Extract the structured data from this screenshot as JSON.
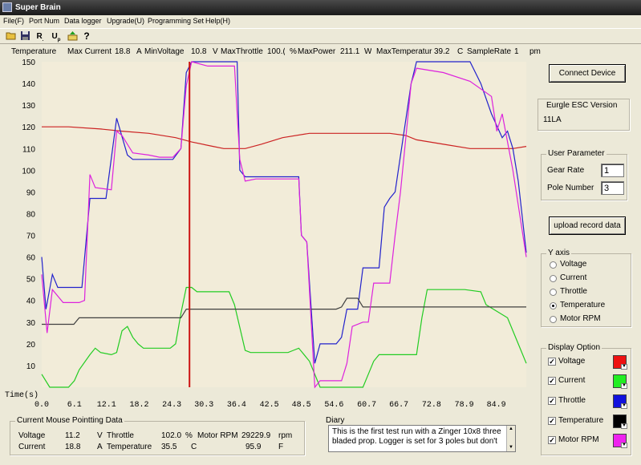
{
  "window": {
    "title": "Super Brain"
  },
  "menu": [
    "File(F)",
    "Port Num",
    "Data logger",
    "Upgrade(U)",
    "Programming Set",
    "Help(H)"
  ],
  "toolbar_icons": [
    "open-folder-icon",
    "save-disk-icon",
    "r-tool-icon",
    "u-tool-icon",
    "upload-icon",
    "help-icon"
  ],
  "stats": {
    "left_axis_label": "Temperature",
    "max_current_label": "Max Current",
    "max_current": "18.8",
    "current_unit": "A",
    "min_voltage_label": "MinVoltage",
    "min_voltage": "10.8",
    "voltage_unit": "V",
    "max_throttle_label": "MaxThrottle",
    "max_throttle": "100.(",
    "throttle_unit": "%",
    "max_power_label": "MaxPower",
    "max_power": "211.1",
    "power_unit": "W",
    "max_temp_label": "MaxTemperatur",
    "max_temp": "39.2",
    "temp_unit": "C",
    "sample_rate_label": "SampleRate",
    "sample_rate": "1",
    "sample_unit": "pm"
  },
  "chart_data": {
    "type": "line",
    "xlabel": "Time(s)",
    "ylabel": "Temperature",
    "ylim": [
      0,
      150
    ],
    "xlim": [
      0,
      90.5
    ],
    "yticks": [
      10,
      20,
      30,
      40,
      50,
      60,
      70,
      80,
      90,
      100,
      110,
      120,
      130,
      140,
      150
    ],
    "xticks": [
      "0.0",
      "6.1",
      "12.1",
      "18.2",
      "24.3",
      "30.3",
      "36.4",
      "42.5",
      "48.5",
      "54.6",
      "60.7",
      "66.7",
      "72.8",
      "78.9",
      "84.9"
    ],
    "xtick_values": [
      0.0,
      6.1,
      12.1,
      18.2,
      24.3,
      30.3,
      36.4,
      42.5,
      48.5,
      54.6,
      60.7,
      66.7,
      72.8,
      78.9,
      84.9
    ],
    "cursor_x": 27.6,
    "grid": false,
    "series": [
      {
        "name": "Voltage",
        "color": "#cc2222",
        "points": [
          [
            0,
            120
          ],
          [
            5,
            120
          ],
          [
            11,
            119
          ],
          [
            15,
            118
          ],
          [
            20,
            117
          ],
          [
            25,
            115
          ],
          [
            28,
            113
          ],
          [
            32,
            111
          ],
          [
            34,
            110
          ],
          [
            38,
            110
          ],
          [
            41,
            112
          ],
          [
            45,
            115
          ],
          [
            50,
            117
          ],
          [
            54,
            117
          ],
          [
            58,
            117
          ],
          [
            63,
            117
          ],
          [
            65,
            117
          ],
          [
            68,
            116
          ],
          [
            70,
            114
          ],
          [
            75,
            112
          ],
          [
            80,
            110
          ],
          [
            85,
            110
          ],
          [
            88,
            110
          ],
          [
            90.5,
            111
          ]
        ]
      },
      {
        "name": "Current",
        "color": "#22cc22",
        "points": [
          [
            0,
            6
          ],
          [
            1.5,
            0
          ],
          [
            5,
            0
          ],
          [
            6.1,
            3
          ],
          [
            7,
            8
          ],
          [
            9,
            15
          ],
          [
            10,
            18
          ],
          [
            11,
            16
          ],
          [
            13,
            15
          ],
          [
            14,
            16
          ],
          [
            15,
            26
          ],
          [
            16,
            28
          ],
          [
            17,
            23
          ],
          [
            18,
            20
          ],
          [
            19,
            18
          ],
          [
            24,
            18
          ],
          [
            25,
            20
          ],
          [
            26,
            34
          ],
          [
            27,
            46
          ],
          [
            28,
            46
          ],
          [
            29,
            44
          ],
          [
            35,
            44
          ],
          [
            36,
            38
          ],
          [
            38,
            17
          ],
          [
            39,
            16
          ],
          [
            46,
            16
          ],
          [
            47,
            17
          ],
          [
            48,
            18
          ],
          [
            50,
            12
          ],
          [
            52,
            0
          ],
          [
            60,
            0
          ],
          [
            61,
            6
          ],
          [
            62,
            12
          ],
          [
            63,
            15
          ],
          [
            70,
            15
          ],
          [
            71,
            32
          ],
          [
            72,
            45
          ],
          [
            73,
            45
          ],
          [
            79,
            45
          ],
          [
            82,
            44
          ],
          [
            83,
            38
          ],
          [
            87,
            32
          ],
          [
            89,
            20
          ],
          [
            90.5,
            11
          ]
        ]
      },
      {
        "name": "Throttle",
        "color": "#2222cc",
        "points": [
          [
            0,
            60
          ],
          [
            0.8,
            36
          ],
          [
            2,
            52
          ],
          [
            3,
            46
          ],
          [
            7.5,
            46
          ],
          [
            9,
            87
          ],
          [
            10,
            87
          ],
          [
            12,
            87
          ],
          [
            14,
            124
          ],
          [
            16,
            107
          ],
          [
            17,
            105
          ],
          [
            24.5,
            105
          ],
          [
            26,
            110
          ],
          [
            27,
            145
          ],
          [
            28,
            150
          ],
          [
            36.5,
            150
          ],
          [
            37,
            100
          ],
          [
            38,
            97
          ],
          [
            48,
            97
          ],
          [
            48.5,
            70
          ],
          [
            49.5,
            67
          ],
          [
            51,
            11
          ],
          [
            52,
            20
          ],
          [
            55,
            20
          ],
          [
            56,
            23
          ],
          [
            57,
            36
          ],
          [
            59,
            36
          ],
          [
            60,
            55
          ],
          [
            63,
            55
          ],
          [
            64,
            83
          ],
          [
            65,
            87
          ],
          [
            66,
            90
          ],
          [
            69,
            140
          ],
          [
            70,
            150
          ],
          [
            80,
            150
          ],
          [
            82,
            140
          ],
          [
            84,
            126
          ],
          [
            86,
            115
          ],
          [
            87,
            118
          ],
          [
            88,
            110
          ],
          [
            89,
            95
          ],
          [
            90.5,
            62
          ]
        ]
      },
      {
        "name": "Temperature",
        "color": "#404040",
        "points": [
          [
            0,
            29
          ],
          [
            6,
            29
          ],
          [
            7,
            32
          ],
          [
            10,
            32
          ],
          [
            26,
            32
          ],
          [
            27,
            36
          ],
          [
            55,
            36
          ],
          [
            56,
            37
          ],
          [
            57,
            41
          ],
          [
            59,
            41
          ],
          [
            60,
            37
          ],
          [
            90.5,
            37
          ]
        ]
      },
      {
        "name": "Motor RPM",
        "color": "#dd22dd",
        "points": [
          [
            0,
            52
          ],
          [
            1,
            25
          ],
          [
            2,
            45
          ],
          [
            4,
            39
          ],
          [
            7,
            39
          ],
          [
            8,
            40
          ],
          [
            9,
            98
          ],
          [
            10,
            92
          ],
          [
            13,
            91
          ],
          [
            14,
            118
          ],
          [
            15,
            116
          ],
          [
            16,
            112
          ],
          [
            17,
            108
          ],
          [
            20,
            107
          ],
          [
            22,
            106
          ],
          [
            24.5,
            106
          ],
          [
            26,
            110
          ],
          [
            27,
            139
          ],
          [
            28,
            150
          ],
          [
            31,
            148
          ],
          [
            36,
            148
          ],
          [
            37,
            105
          ],
          [
            38,
            95
          ],
          [
            40,
            96
          ],
          [
            48,
            96
          ],
          [
            48.5,
            70
          ],
          [
            49.5,
            67
          ],
          [
            51,
            0
          ],
          [
            52,
            3
          ],
          [
            56,
            3
          ],
          [
            57,
            11
          ],
          [
            58,
            28
          ],
          [
            60,
            30
          ],
          [
            61,
            30
          ],
          [
            62,
            48
          ],
          [
            65,
            48
          ],
          [
            66,
            70
          ],
          [
            67,
            90
          ],
          [
            69,
            140
          ],
          [
            70,
            147
          ],
          [
            75,
            145
          ],
          [
            80,
            141
          ],
          [
            84,
            134
          ],
          [
            85,
            118
          ],
          [
            86,
            126
          ],
          [
            88,
            100
          ],
          [
            90.5,
            60
          ]
        ]
      }
    ]
  },
  "connect_button": "Connect Device",
  "esc_version": {
    "label": "Eurgle ESC Version",
    "value": "11LA"
  },
  "user_param": {
    "title": "User Parameter",
    "gear_rate_label": "Gear Rate",
    "gear_rate": "1",
    "pole_number_label": "Pole Number",
    "pole_number": "3"
  },
  "upload_button": "upload record data",
  "y_axis": {
    "title": "Y axis",
    "options": [
      "Voltage",
      "Current",
      "Throttle",
      "Temperature",
      "Motor RPM"
    ],
    "selected": "Temperature"
  },
  "display_option": {
    "title": "Display Option",
    "items": [
      {
        "label": "Voltage",
        "color": "#ee1111"
      },
      {
        "label": "Current",
        "color": "#22ee22"
      },
      {
        "label": "Throttle",
        "color": "#1111dd"
      },
      {
        "label": "Temperature",
        "color": "#000000"
      },
      {
        "label": "Motor RPM",
        "color": "#ee22ee"
      }
    ]
  },
  "mouse_data": {
    "title": "Current Mouse Pointting Data",
    "voltage_label": "Voltage",
    "voltage": "11.2",
    "voltage_unit": "V",
    "throttle_label": "Throttle",
    "throttle": "102.0",
    "throttle_unit": "%",
    "rpm_label": "Motor RPM",
    "rpm": "29229.9",
    "rpm_unit": "rpm",
    "current_label": "Current",
    "current": "18.8",
    "current_unit": "A",
    "temp_label": "Temperature",
    "temp": "35.5",
    "temp_unit": "C",
    "temp_f": "95.9",
    "temp_f_unit": "F"
  },
  "diary": {
    "title": "Diary",
    "text": "This is the first test run with a Zinger 10x8 three bladed prop. Logger is set for 3 poles but don't"
  }
}
